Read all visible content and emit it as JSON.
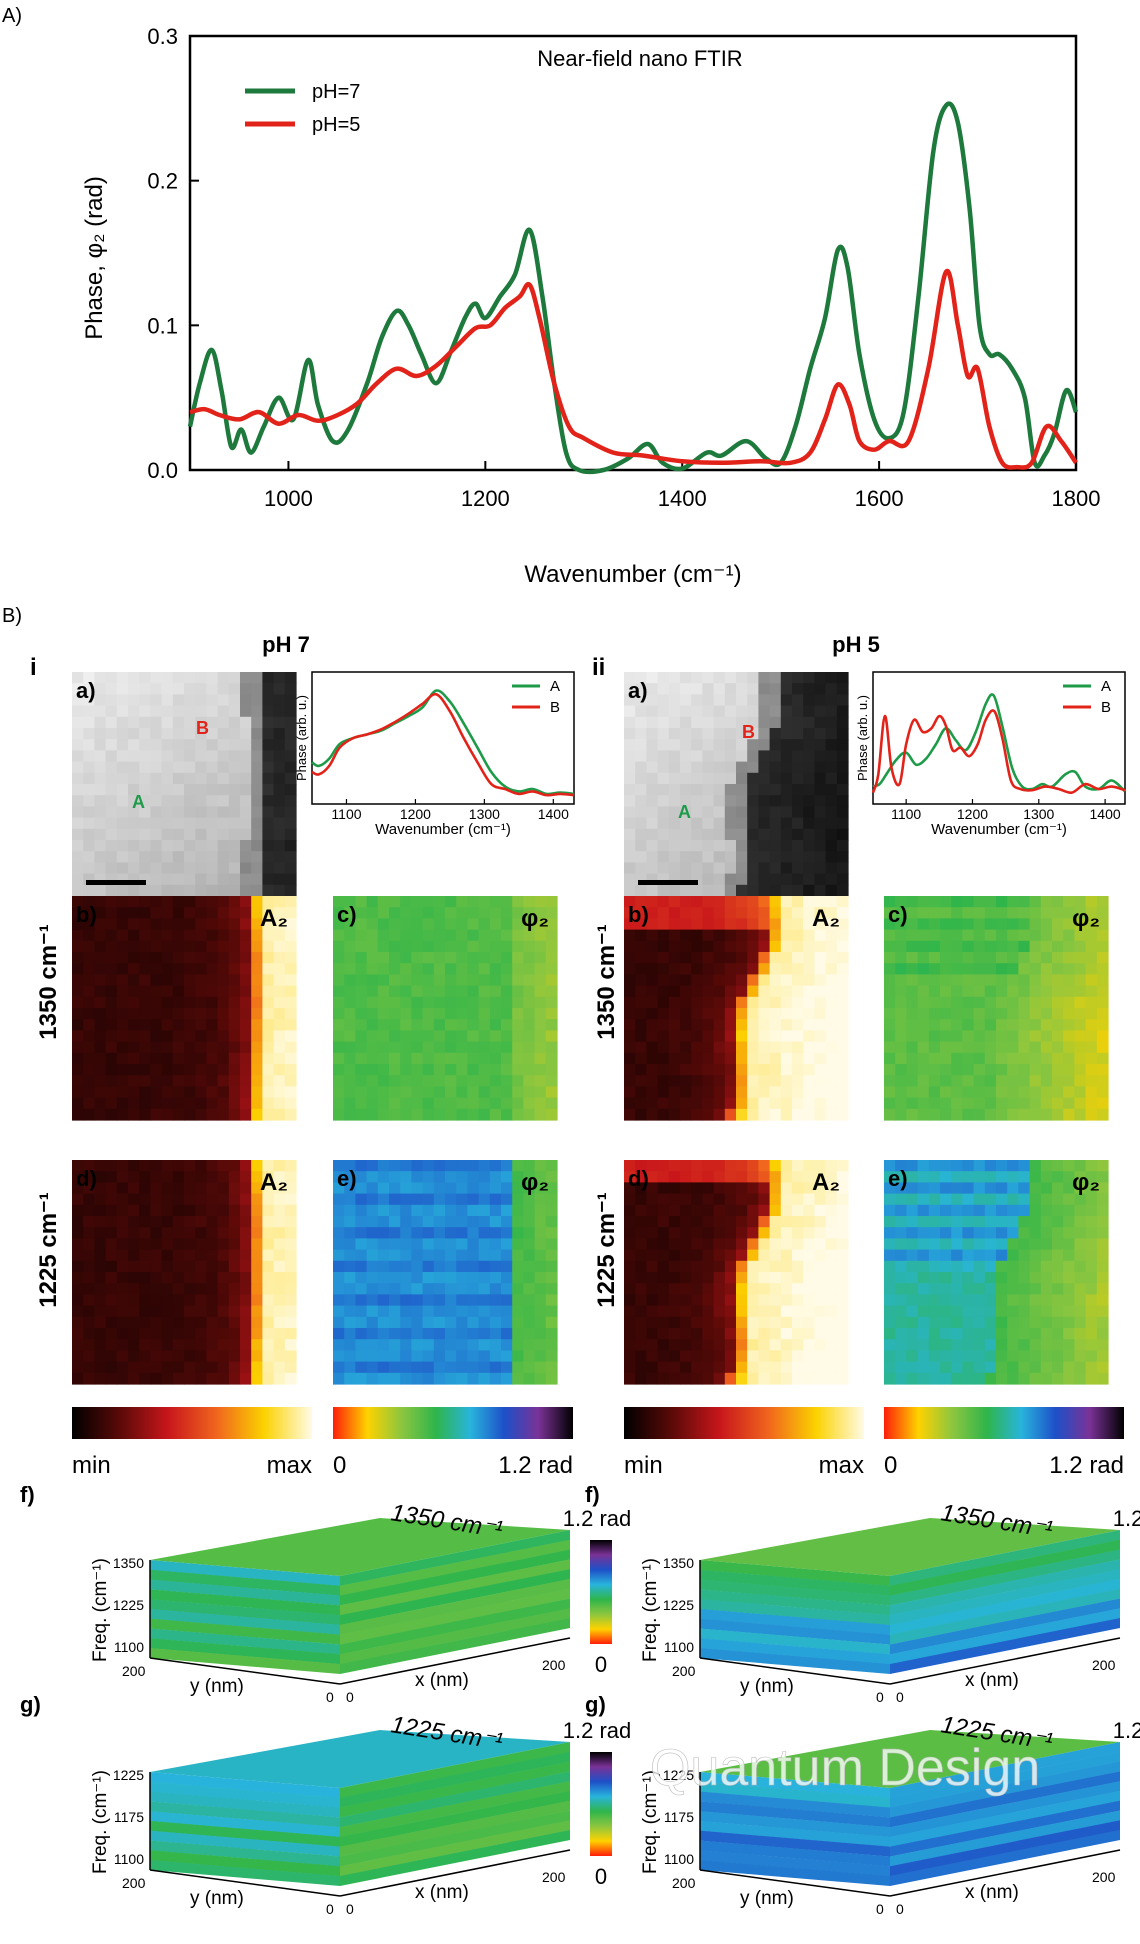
{
  "figure": {
    "panel_a_label": "A)",
    "panel_b_label": "B)",
    "col_i": "i",
    "col_ii": "ii",
    "title_i": "pH 7",
    "title_ii": "pH 5",
    "row_1350": "1350 cm⁻¹",
    "row_1225": "1225 cm⁻¹",
    "watermark": "Quantum Design"
  },
  "chart_data": [
    {
      "type": "line",
      "title": "Near-field nano FTIR",
      "xlabel": "Wavenumber (cm⁻¹)",
      "ylabel": "Phase, φ₂ (rad)",
      "xlim": [
        900,
        1800
      ],
      "ylim": [
        0,
        0.3
      ],
      "xticks": [
        "1000",
        "1200",
        "1400",
        "1600",
        "1800"
      ],
      "yticks": [
        "0.0",
        "0.1",
        "0.2",
        "0.3"
      ],
      "legend_position": "top-left",
      "series": [
        {
          "name": "pH=7",
          "color": "#1e7a3c",
          "x": [
            900,
            910,
            922,
            932,
            942,
            952,
            962,
            975,
            990,
            1005,
            1020,
            1030,
            1045,
            1060,
            1080,
            1095,
            1110,
            1122,
            1135,
            1150,
            1165,
            1180,
            1190,
            1200,
            1215,
            1230,
            1245,
            1258,
            1270,
            1282,
            1295,
            1320,
            1345,
            1365,
            1380,
            1400,
            1425,
            1440,
            1465,
            1485,
            1500,
            1515,
            1530,
            1545,
            1558,
            1568,
            1580,
            1595,
            1610,
            1625,
            1640,
            1655,
            1668,
            1680,
            1692,
            1702,
            1712,
            1722,
            1735,
            1748,
            1758,
            1768,
            1778,
            1790,
            1800
          ],
          "y": [
            0.03,
            0.06,
            0.083,
            0.055,
            0.016,
            0.028,
            0.012,
            0.03,
            0.05,
            0.035,
            0.076,
            0.045,
            0.02,
            0.027,
            0.06,
            0.092,
            0.11,
            0.1,
            0.08,
            0.06,
            0.082,
            0.106,
            0.115,
            0.105,
            0.12,
            0.135,
            0.166,
            0.12,
            0.06,
            0.012,
            0.0,
            0.0,
            0.008,
            0.018,
            0.005,
            0.001,
            0.012,
            0.01,
            0.02,
            0.008,
            0.005,
            0.03,
            0.07,
            0.105,
            0.152,
            0.14,
            0.08,
            0.035,
            0.022,
            0.04,
            0.12,
            0.22,
            0.252,
            0.24,
            0.18,
            0.1,
            0.08,
            0.08,
            0.07,
            0.05,
            0.005,
            0.01,
            0.025,
            0.055,
            0.04
          ]
        },
        {
          "name": "pH=5",
          "color": "#e2231a",
          "x": [
            900,
            915,
            930,
            950,
            970,
            990,
            1010,
            1030,
            1050,
            1070,
            1090,
            1110,
            1130,
            1150,
            1170,
            1190,
            1205,
            1220,
            1235,
            1245,
            1255,
            1270,
            1285,
            1300,
            1330,
            1360,
            1400,
            1440,
            1480,
            1510,
            1530,
            1545,
            1558,
            1570,
            1580,
            1595,
            1610,
            1630,
            1650,
            1668,
            1680,
            1690,
            1700,
            1712,
            1725,
            1740,
            1755,
            1770,
            1785,
            1800
          ],
          "y": [
            0.04,
            0.042,
            0.038,
            0.035,
            0.04,
            0.032,
            0.038,
            0.034,
            0.038,
            0.046,
            0.06,
            0.07,
            0.065,
            0.072,
            0.085,
            0.098,
            0.1,
            0.112,
            0.12,
            0.128,
            0.105,
            0.06,
            0.03,
            0.022,
            0.012,
            0.01,
            0.006,
            0.005,
            0.006,
            0.005,
            0.012,
            0.035,
            0.059,
            0.045,
            0.02,
            0.014,
            0.02,
            0.02,
            0.07,
            0.137,
            0.1,
            0.065,
            0.07,
            0.03,
            0.005,
            0.002,
            0.005,
            0.03,
            0.02,
            0.005
          ]
        }
      ]
    },
    {
      "type": "line",
      "title": "",
      "xlabel": "Wavenumber (cm⁻¹)",
      "ylabel": "Phase (arb. u.)",
      "xlim": [
        1050,
        1430
      ],
      "xticks": [
        "1100",
        "1200",
        "1300",
        "1400"
      ],
      "ylim": [
        0,
        1
      ],
      "legend_position": "top-right",
      "series": [
        {
          "name": "A",
          "color": "#1e9b48",
          "x": [
            1050,
            1060,
            1075,
            1090,
            1110,
            1130,
            1150,
            1170,
            1190,
            1210,
            1230,
            1250,
            1270,
            1290,
            1310,
            1330,
            1350,
            1370,
            1390,
            1410,
            1430
          ],
          "y": [
            0.3,
            0.27,
            0.33,
            0.45,
            0.5,
            0.53,
            0.56,
            0.62,
            0.68,
            0.75,
            0.89,
            0.8,
            0.62,
            0.42,
            0.22,
            0.1,
            0.06,
            0.08,
            0.04,
            0.05,
            0.04
          ]
        },
        {
          "name": "B",
          "color": "#e2231a",
          "x": [
            1050,
            1060,
            1075,
            1090,
            1110,
            1130,
            1150,
            1170,
            1190,
            1210,
            1230,
            1250,
            1270,
            1290,
            1310,
            1330,
            1350,
            1370,
            1390,
            1410,
            1430
          ],
          "y": [
            0.22,
            0.2,
            0.27,
            0.42,
            0.5,
            0.53,
            0.57,
            0.63,
            0.7,
            0.78,
            0.86,
            0.72,
            0.5,
            0.3,
            0.12,
            0.08,
            0.04,
            0.06,
            0.03,
            0.04,
            0.03
          ]
        }
      ]
    },
    {
      "type": "line",
      "title": "",
      "xlabel": "Wavenumber (cm⁻¹)",
      "ylabel": "Phase (arb. u.)",
      "xlim": [
        1050,
        1430
      ],
      "xticks": [
        "1100",
        "1200",
        "1300",
        "1400"
      ],
      "ylim": [
        0,
        1
      ],
      "legend_position": "top-right",
      "series": [
        {
          "name": "A",
          "color": "#1e9b48",
          "x": [
            1050,
            1060,
            1070,
            1085,
            1100,
            1115,
            1130,
            1145,
            1160,
            1175,
            1190,
            1205,
            1220,
            1232,
            1245,
            1260,
            1275,
            1290,
            1305,
            1320,
            1340,
            1355,
            1370,
            1390,
            1410,
            1430
          ],
          "y": [
            0.1,
            0.12,
            0.2,
            0.32,
            0.38,
            0.28,
            0.33,
            0.45,
            0.58,
            0.48,
            0.4,
            0.55,
            0.78,
            0.85,
            0.6,
            0.25,
            0.1,
            0.08,
            0.12,
            0.1,
            0.2,
            0.22,
            0.1,
            0.08,
            0.15,
            0.06
          ]
        },
        {
          "name": "B",
          "color": "#e2231a",
          "x": [
            1050,
            1058,
            1068,
            1078,
            1090,
            1100,
            1112,
            1125,
            1138,
            1150,
            1160,
            1170,
            1182,
            1195,
            1208,
            1220,
            1233,
            1245,
            1258,
            1272,
            1290,
            1310,
            1330,
            1350,
            1370,
            1390,
            1410,
            1430
          ],
          "y": [
            0.05,
            0.2,
            0.68,
            0.25,
            0.12,
            0.45,
            0.65,
            0.55,
            0.58,
            0.68,
            0.6,
            0.4,
            0.42,
            0.35,
            0.45,
            0.65,
            0.72,
            0.5,
            0.15,
            0.08,
            0.07,
            0.1,
            0.08,
            0.05,
            0.12,
            0.08,
            0.1,
            0.07
          ]
        }
      ]
    }
  ],
  "images": {
    "sub_a": "a)",
    "sub_b": "b)",
    "sub_c": "c)",
    "sub_d": "d)",
    "sub_e": "e)",
    "amp_label": "A₂",
    "phase_label": "φ₂",
    "marker_a": "A",
    "marker_b": "B",
    "marker_a_color": "#1e9b48",
    "marker_b_color": "#e2231a"
  },
  "colorbars": {
    "amp_min": "min",
    "amp_max": "max",
    "phase_min": "0",
    "phase_max": "1.2 rad",
    "amp_colors": [
      "#000000",
      "#5a0a08",
      "#c8161b",
      "#f0641e",
      "#fbd200",
      "#fffbe6"
    ],
    "phase_colors": [
      "#ff1e0a",
      "#ffd200",
      "#8cc63f",
      "#2fb54b",
      "#28b4dc",
      "#1e50c8",
      "#7a3296",
      "#000000"
    ]
  },
  "cubes": {
    "f_label": "f)",
    "g_label": "g)",
    "top_1350": "1350 cm⁻¹",
    "top_1225": "1225 cm⁻¹",
    "freq_axis": "Freq. (cm⁻¹)",
    "y_axis": "y (nm)",
    "x_axis": "x (nm)",
    "scale_max": "1.2 rad",
    "scale_min": "0",
    "f_ticks": [
      "1350",
      "1225",
      "1100"
    ],
    "g_ticks": [
      "1225",
      "1175",
      "1100"
    ],
    "corner_200": "200",
    "corner_0": "0"
  }
}
